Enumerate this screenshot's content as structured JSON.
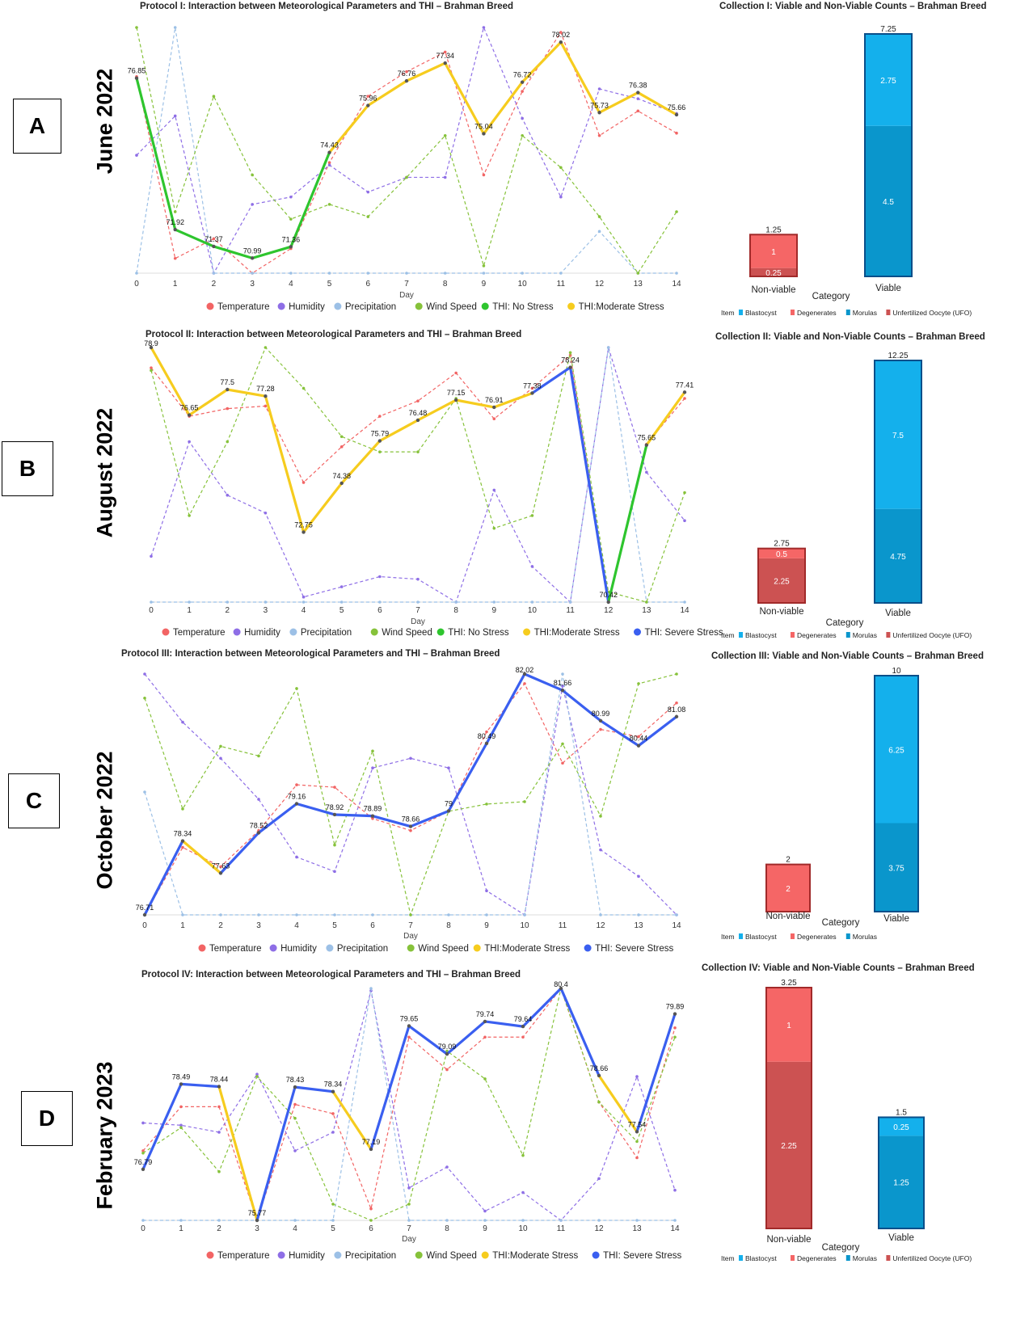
{
  "panels": [
    {
      "letter": "A",
      "month": "June 2022",
      "line": {
        "title": "Protocol I: Interaction between Meteorological Parameters and THI – Brahman Breed",
        "xlabel": "Day"
      },
      "bar": {
        "title": "Collection I: Viable and Non-Viable Counts – Brahman Breed",
        "xlabel": "Category"
      }
    },
    {
      "letter": "B",
      "month": "August 2022",
      "line": {
        "title": "Protocol II: Interaction between Meteorological Parameters and THI – Brahman Breed",
        "xlabel": "Day"
      },
      "bar": {
        "title": "Collection II: Viable and Non-Viable Counts – Brahman Breed",
        "xlabel": "Category"
      }
    },
    {
      "letter": "C",
      "month": "October 2022",
      "line": {
        "title": "Protocol III: Interaction between Meteorological Parameters and THI – Brahman Breed",
        "xlabel": "Day"
      },
      "bar": {
        "title": "Collection III: Viable and Non-Viable Counts – Brahman Breed",
        "xlabel": "Category"
      }
    },
    {
      "letter": "D",
      "month": "February 2023",
      "line": {
        "title": "Protocol IV: Interaction between Meteorological Parameters and THI – Brahman Breed",
        "xlabel": "Day"
      },
      "bar": {
        "title": "Collection IV: Viable and Non-Viable Counts – Brahman Breed",
        "xlabel": "Category"
      }
    }
  ],
  "colors": {
    "temperature": "#f26464",
    "humidity": "#8e6ee6",
    "precipitation": "#9cc0e6",
    "wind_speed": "#86c23a",
    "no_stress": "#2ec52e",
    "moderate_stress": "#f6cc1e",
    "severe_stress": "#3a5ff0",
    "blastocyst": "#14b0ec",
    "morulas": "#0a96cc",
    "degenerates": "#f56666",
    "ufo": "#cc5252",
    "bar_border_blue": "#0a4f8a",
    "bar_border_red": "#a12a2a"
  },
  "chart_data": [
    {
      "type": "line",
      "title": "Protocol I: Interaction between Meteorological Parameters and THI – Brahman Breed",
      "xlabel": "Day",
      "x": [
        0,
        1,
        2,
        3,
        4,
        5,
        6,
        7,
        8,
        9,
        10,
        11,
        12,
        13,
        14
      ],
      "thi": [
        76.85,
        71.92,
        71.37,
        70.99,
        71.36,
        74.43,
        75.96,
        76.76,
        77.34,
        75.04,
        76.72,
        78.02,
        75.73,
        76.38,
        75.66
      ],
      "thi_labels": [
        "76.85",
        "71.92",
        "71.37",
        "70.99",
        "71.36",
        "74.43",
        "75.96",
        "76.76",
        "77.34",
        "75.04",
        "76.72",
        "78.02",
        "75.73",
        "76.38",
        "75.66"
      ],
      "thi_ylim": [
        70.5,
        78.5
      ],
      "thi_classes": [
        "moderate",
        "no",
        "no",
        "no",
        "no",
        "moderate",
        "moderate",
        "moderate",
        "moderate",
        "moderate",
        "moderate",
        "moderate",
        "moderate",
        "moderate",
        "moderate"
      ],
      "series_norm": {
        "Temperature": [
          0.8,
          0.06,
          0.14,
          0.0,
          0.1,
          0.45,
          0.72,
          0.82,
          0.9,
          0.4,
          0.74,
          0.98,
          0.56,
          0.66,
          0.57
        ],
        "Humidity": [
          0.48,
          0.64,
          0.0,
          0.28,
          0.31,
          0.44,
          0.33,
          0.39,
          0.39,
          1.0,
          0.63,
          0.31,
          0.75,
          0.71,
          0.65
        ],
        "Precipitation": [
          0.0,
          1.0,
          0.0,
          0.0,
          0.0,
          0.0,
          0.0,
          0.0,
          0.0,
          0.0,
          0.0,
          0.0,
          0.17,
          0.0,
          0.0
        ],
        "Wind Speed": [
          1.0,
          0.25,
          0.72,
          0.4,
          0.22,
          0.28,
          0.23,
          0.39,
          0.56,
          0.03,
          0.56,
          0.43,
          0.23,
          0.0,
          0.25
        ]
      },
      "legend": [
        "Temperature",
        "Humidity",
        "Precipitation",
        "Wind Speed",
        "THI: No Stress",
        "THI:Moderate Stress"
      ]
    },
    {
      "type": "line",
      "title": "Protocol II: Interaction between Meteorological Parameters and THI – Brahman Breed",
      "xlabel": "Day",
      "x": [
        0,
        1,
        2,
        3,
        4,
        5,
        6,
        7,
        8,
        9,
        10,
        11,
        12,
        13,
        14
      ],
      "thi": [
        78.9,
        76.65,
        77.5,
        77.28,
        72.75,
        74.38,
        75.79,
        76.48,
        77.15,
        76.91,
        77.38,
        78.24,
        70.42,
        75.65,
        77.41
      ],
      "thi_labels": [
        "78.9",
        "76.65",
        "77.5",
        "77.28",
        "72.75",
        "74.38",
        "75.79",
        "76.48",
        "77.15",
        "76.91",
        "77.38",
        "78.24",
        "70.42",
        "75.65",
        "77.41"
      ],
      "thi_ylim": [
        70.42,
        78.9
      ],
      "thi_classes": [
        "severe",
        "moderate",
        "moderate",
        "moderate",
        "moderate",
        "moderate",
        "moderate",
        "moderate",
        "moderate",
        "moderate",
        "moderate",
        "severe",
        "no",
        "moderate",
        "moderate"
      ],
      "series_norm": {
        "Temperature": [
          0.92,
          0.73,
          0.76,
          0.77,
          0.47,
          0.61,
          0.73,
          0.79,
          0.9,
          0.72,
          0.84,
          0.97,
          0.0,
          0.62,
          0.8
        ],
        "Humidity": [
          0.18,
          0.63,
          0.42,
          0.35,
          0.02,
          0.06,
          0.1,
          0.09,
          0.0,
          0.44,
          0.14,
          0.0,
          1.0,
          0.51,
          0.32
        ],
        "Precipitation": [
          0.0,
          0.0,
          0.0,
          0.0,
          0.0,
          0.0,
          0.0,
          0.0,
          0.0,
          0.0,
          0.0,
          0.0,
          1.0,
          0.0,
          0.0
        ],
        "Wind Speed": [
          0.91,
          0.34,
          0.63,
          1.0,
          0.84,
          0.65,
          0.59,
          0.59,
          0.8,
          0.29,
          0.34,
          0.98,
          0.04,
          0.0,
          0.43
        ]
      },
      "legend": [
        "Temperature",
        "Humidity",
        "Precipitation",
        "Wind Speed",
        "THI: No Stress",
        "THI:Moderate Stress",
        "THI: Severe Stress"
      ]
    },
    {
      "type": "line",
      "title": "Protocol III: Interaction between Meteorological Parameters and THI – Brahman Breed",
      "xlabel": "Day",
      "x": [
        0,
        1,
        2,
        3,
        4,
        5,
        6,
        7,
        8,
        9,
        10,
        11,
        12,
        13,
        14
      ],
      "thi": [
        76.71,
        78.34,
        77.63,
        78.52,
        79.16,
        78.92,
        78.89,
        78.66,
        79.0,
        80.49,
        82.02,
        81.66,
        80.99,
        80.44,
        81.08
      ],
      "thi_labels": [
        "76.71",
        "78.34",
        "77.63",
        "78.52",
        "79.16",
        "78.92",
        "78.89",
        "78.66",
        "79",
        "80.49",
        "82.02",
        "81.66",
        "80.99",
        "80.44",
        "81.08"
      ],
      "thi_ylim": [
        76.71,
        82.02
      ],
      "thi_classes": [
        "moderate",
        "severe",
        "moderate",
        "severe",
        "severe",
        "severe",
        "severe",
        "severe",
        "severe",
        "severe",
        "severe",
        "severe",
        "severe",
        "severe",
        "severe"
      ],
      "series_norm": {
        "Temperature": [
          0.0,
          0.28,
          0.2,
          0.35,
          0.54,
          0.53,
          0.4,
          0.35,
          0.43,
          0.76,
          0.96,
          0.63,
          0.77,
          0.74,
          0.88
        ],
        "Humidity": [
          1.0,
          0.8,
          0.65,
          0.48,
          0.24,
          0.18,
          0.61,
          0.65,
          0.61,
          0.1,
          0.0,
          0.95,
          0.27,
          0.16,
          0.0
        ],
        "Precipitation": [
          0.51,
          0.0,
          0.0,
          0.0,
          0.0,
          0.0,
          0.0,
          0.0,
          0.0,
          0.0,
          0.0,
          1.0,
          0.0,
          0.0,
          0.0
        ],
        "Wind Speed": [
          0.9,
          0.44,
          0.7,
          0.66,
          0.94,
          0.29,
          0.68,
          0.0,
          0.43,
          0.46,
          0.47,
          0.71,
          0.41,
          0.96,
          1.0
        ]
      },
      "legend": [
        "Temperature",
        "Humidity",
        "Precipitation",
        "Wind Speed",
        "THI:Moderate Stress",
        "THI: Severe Stress"
      ]
    },
    {
      "type": "line",
      "title": "Protocol IV: Interaction between Meteorological Parameters and THI – Brahman Breed",
      "xlabel": "Day",
      "x": [
        0,
        1,
        2,
        3,
        4,
        5,
        6,
        7,
        8,
        9,
        10,
        11,
        12,
        13,
        14
      ],
      "thi": [
        76.79,
        78.49,
        78.44,
        75.77,
        78.43,
        78.34,
        77.19,
        79.65,
        79.09,
        79.74,
        79.64,
        80.4,
        78.66,
        77.54,
        79.89
      ],
      "thi_labels": [
        "76.79",
        "78.49",
        "78.44",
        "75.77",
        "78.43",
        "78.34",
        "77.19",
        "79.65",
        "79.09",
        "79.74",
        "79.64",
        "80.4",
        "78.66",
        "77.54",
        "79.89"
      ],
      "thi_ylim": [
        75.77,
        80.4
      ],
      "thi_classes": [
        "moderate",
        "severe",
        "severe",
        "moderate",
        "severe",
        "severe",
        "moderate",
        "severe",
        "severe",
        "severe",
        "severe",
        "severe",
        "severe",
        "moderate",
        "severe"
      ],
      "series_norm": {
        "Temperature": [
          0.3,
          0.49,
          0.49,
          0.0,
          0.5,
          0.46,
          0.05,
          0.79,
          0.65,
          0.79,
          0.79,
          1.0,
          0.51,
          0.27,
          0.83
        ],
        "Humidity": [
          0.42,
          0.41,
          0.38,
          0.63,
          0.3,
          0.38,
          0.99,
          0.14,
          0.23,
          0.04,
          0.12,
          0.0,
          0.18,
          0.62,
          0.13
        ],
        "Precipitation": [
          0.0,
          0.0,
          0.0,
          0.0,
          0.0,
          0.0,
          1.0,
          0.0,
          0.0,
          0.0,
          0.0,
          0.0,
          0.0,
          0.0,
          0.0
        ],
        "Wind Speed": [
          0.29,
          0.4,
          0.21,
          0.62,
          0.44,
          0.07,
          0.0,
          0.07,
          0.73,
          0.61,
          0.28,
          1.0,
          0.51,
          0.34,
          0.79
        ]
      },
      "legend": [
        "Temperature",
        "Humidity",
        "Precipitation",
        "Wind Speed",
        "THI:Moderate Stress",
        "THI: Severe Stress"
      ]
    },
    {
      "type": "bar",
      "stacked": true,
      "title": "Collection I: Viable and Non-Viable Counts – Brahman Breed",
      "xlabel": "Category",
      "categories": [
        "Non-viable",
        "Viable"
      ],
      "ymax": 7.25,
      "series": [
        {
          "name": "Unfertilized Oocyte (UFO)",
          "values": [
            0.25,
            0
          ]
        },
        {
          "name": "Degenerates",
          "values": [
            1,
            0
          ]
        },
        {
          "name": "Morulas",
          "values": [
            0,
            4.5
          ]
        },
        {
          "name": "Blastocyst",
          "values": [
            0,
            2.75
          ]
        }
      ],
      "totals": [
        1.25,
        7.25
      ],
      "total_labels": [
        "1.25",
        "7.25"
      ],
      "legend_title": "Item",
      "legend": [
        "Blastocyst",
        "Degenerates",
        "Morulas",
        "Unfertilized Oocyte (UFO)"
      ]
    },
    {
      "type": "bar",
      "stacked": true,
      "title": "Collection II: Viable and Non-Viable Counts – Brahman Breed",
      "xlabel": "Category",
      "categories": [
        "Non-viable",
        "Viable"
      ],
      "ymax": 12.25,
      "series": [
        {
          "name": "Unfertilized Oocyte (UFO)",
          "values": [
            2.25,
            0
          ]
        },
        {
          "name": "Degenerates",
          "values": [
            0.5,
            0
          ]
        },
        {
          "name": "Morulas",
          "values": [
            0,
            4.75
          ]
        },
        {
          "name": "Blastocyst",
          "values": [
            0,
            7.5
          ]
        }
      ],
      "totals": [
        2.75,
        12.25
      ],
      "total_labels": [
        "2.75",
        "12.25"
      ],
      "legend_title": "Item",
      "legend": [
        "Blastocyst",
        "Degenerates",
        "Morulas",
        "Unfertilized Oocyte (UFO)"
      ]
    },
    {
      "type": "bar",
      "stacked": true,
      "title": "Collection III: Viable and Non-Viable Counts – Brahman Breed",
      "xlabel": "Category",
      "categories": [
        "Non-viable",
        "Viable"
      ],
      "ymax": 10,
      "series": [
        {
          "name": "Degenerates",
          "values": [
            2,
            0
          ]
        },
        {
          "name": "Morulas",
          "values": [
            0,
            3.75
          ]
        },
        {
          "name": "Blastocyst",
          "values": [
            0,
            6.25
          ]
        }
      ],
      "totals": [
        2,
        10
      ],
      "total_labels": [
        "2",
        "10"
      ],
      "legend_title": "Item",
      "legend": [
        "Blastocyst",
        "Degenerates",
        "Morulas"
      ]
    },
    {
      "type": "bar",
      "stacked": true,
      "title": "Collection IV: Viable and Non-Viable Counts – Brahman Breed",
      "xlabel": "Category",
      "categories": [
        "Non-viable",
        "Viable"
      ],
      "ymax": 3.25,
      "series": [
        {
          "name": "Unfertilized Oocyte (UFO)",
          "values": [
            2.25,
            0
          ]
        },
        {
          "name": "Degenerates",
          "values": [
            1,
            0
          ]
        },
        {
          "name": "Morulas",
          "values": [
            0,
            1.25
          ]
        },
        {
          "name": "Blastocyst",
          "values": [
            0,
            0.25
          ]
        }
      ],
      "totals": [
        3.25,
        1.5
      ],
      "total_labels": [
        "3.25",
        "1.5"
      ],
      "legend_title": "Item",
      "legend": [
        "Blastocyst",
        "Degenerates",
        "Morulas",
        "Unfertilized Oocyte (UFO)"
      ]
    }
  ]
}
